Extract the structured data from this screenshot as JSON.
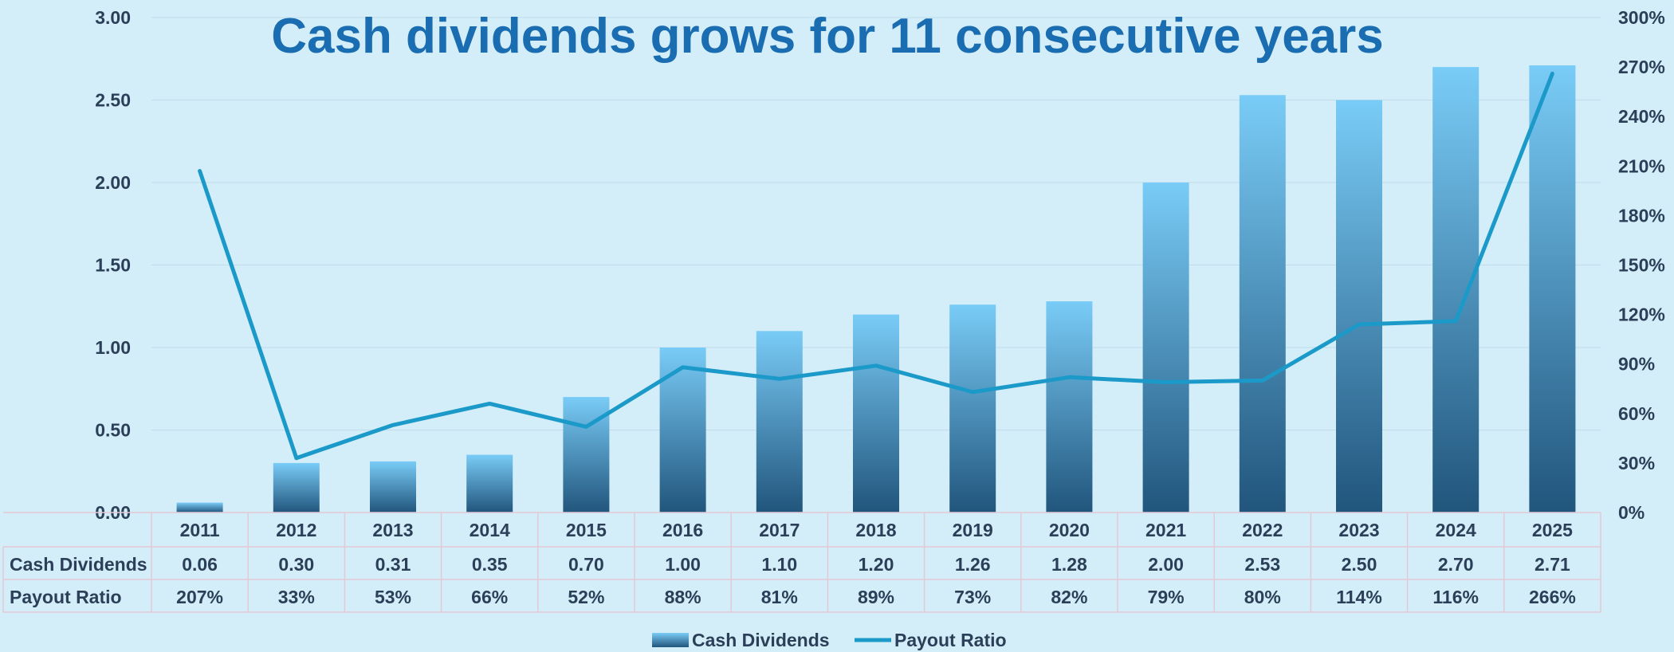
{
  "chart_data": {
    "type": "bar",
    "title": "Cash dividends grows for 11 consecutive years",
    "categories": [
      "2011",
      "2012",
      "2013",
      "2014",
      "2015",
      "2016",
      "2017",
      "2018",
      "2019",
      "2020",
      "2021",
      "2022",
      "2023",
      "2024",
      "2025"
    ],
    "series": [
      {
        "name": "Cash Dividends",
        "type": "bar",
        "axis": "left",
        "values": [
          0.06,
          0.3,
          0.31,
          0.35,
          0.7,
          1.0,
          1.1,
          1.2,
          1.26,
          1.28,
          2.0,
          2.53,
          2.5,
          2.7,
          2.71
        ],
        "labels": [
          "0.06",
          "0.30",
          "0.31",
          "0.35",
          "0.70",
          "1.00",
          "1.10",
          "1.20",
          "1.26",
          "1.28",
          "2.00",
          "2.53",
          "2.50",
          "2.70",
          "2.71"
        ]
      },
      {
        "name": "Payout Ratio",
        "type": "line",
        "axis": "right",
        "values": [
          207,
          33,
          53,
          66,
          52,
          88,
          81,
          89,
          73,
          82,
          79,
          80,
          114,
          116,
          266
        ],
        "labels": [
          "207%",
          "33%",
          "53%",
          "66%",
          "52%",
          "88%",
          "81%",
          "89%",
          "73%",
          "82%",
          "79%",
          "80%",
          "114%",
          "116%",
          "266%"
        ]
      }
    ],
    "y_left": {
      "ylim": [
        0,
        3.0
      ],
      "ticks": [
        "0.00",
        "0.50",
        "1.00",
        "1.50",
        "2.00",
        "2.50",
        "3.00"
      ]
    },
    "y_right": {
      "ylim": [
        0,
        300
      ],
      "ticks": [
        "0%",
        "30%",
        "60%",
        "90%",
        "120%",
        "150%",
        "180%",
        "210%",
        "240%",
        "270%",
        "300%"
      ]
    },
    "grid": true,
    "data_table": true,
    "legend_position": "bottom",
    "colors": {
      "background": "#d3eef8",
      "bar_top": "#79ccf7",
      "bar_bottom": "#21557c",
      "line": "#1b9ac9",
      "title": "#1a6db1",
      "text": "#2b3f58",
      "grid": "#c0dcec",
      "table_border": "#e3c9d6"
    }
  }
}
